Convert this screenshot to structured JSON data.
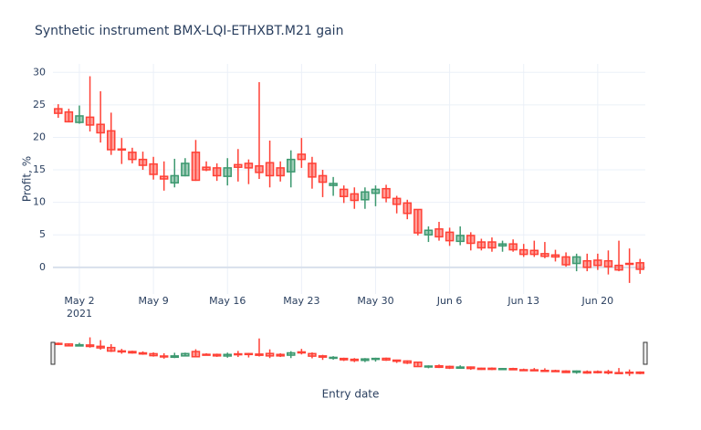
{
  "chart_data": {
    "type": "candlestick",
    "title": "Synthetic instrument BMX-LQI-ETHXBT.M21 gain",
    "x_label": "Entry date",
    "y_label": "Profit, %",
    "x": [
      "2021-04-30",
      "2021-05-01",
      "2021-05-02",
      "2021-05-03",
      "2021-05-04",
      "2021-05-05",
      "2021-05-06",
      "2021-05-07",
      "2021-05-08",
      "2021-05-09",
      "2021-05-10",
      "2021-05-11",
      "2021-05-12",
      "2021-05-13",
      "2021-05-14",
      "2021-05-15",
      "2021-05-16",
      "2021-05-17",
      "2021-05-18",
      "2021-05-19",
      "2021-05-20",
      "2021-05-21",
      "2021-05-22",
      "2021-05-23",
      "2021-05-24",
      "2021-05-25",
      "2021-05-26",
      "2021-05-27",
      "2021-05-28",
      "2021-05-29",
      "2021-05-30",
      "2021-05-31",
      "2021-06-01",
      "2021-06-02",
      "2021-06-03",
      "2021-06-04",
      "2021-06-05",
      "2021-06-06",
      "2021-06-07",
      "2021-06-08",
      "2021-06-09",
      "2021-06-10",
      "2021-06-11",
      "2021-06-12",
      "2021-06-13",
      "2021-06-14",
      "2021-06-15",
      "2021-06-16",
      "2021-06-17",
      "2021-06-18",
      "2021-06-19",
      "2021-06-20",
      "2021-06-21",
      "2021-06-22",
      "2021-06-23",
      "2021-06-24"
    ],
    "open": [
      24.4,
      23.9,
      22.3,
      23.1,
      22.0,
      21.0,
      18.2,
      17.7,
      16.6,
      15.9,
      14.0,
      13.0,
      14.1,
      17.7,
      15.4,
      15.3,
      14.0,
      15.8,
      16.0,
      15.6,
      16.1,
      15.3,
      14.7,
      17.4,
      16.0,
      14.1,
      12.6,
      12.0,
      11.3,
      10.4,
      11.4,
      12.1,
      10.6,
      9.9,
      8.9,
      5.0,
      5.9,
      5.4,
      4.0,
      4.9,
      3.9,
      3.9,
      3.3,
      3.6,
      2.7,
      2.6,
      2.1,
      1.9,
      1.6,
      0.6,
      1.0,
      1.1,
      1.0,
      0.3,
      0.6,
      0.7
    ],
    "high": [
      25.1,
      24.4,
      24.9,
      29.4,
      27.1,
      23.8,
      19.9,
      18.4,
      17.8,
      17.0,
      16.3,
      16.7,
      16.8,
      19.6,
      16.3,
      16.0,
      16.8,
      18.2,
      16.6,
      28.5,
      19.5,
      16.3,
      18.0,
      19.9,
      17.0,
      15.0,
      13.9,
      12.6,
      12.3,
      12.3,
      12.6,
      12.7,
      11.0,
      10.4,
      8.9,
      6.3,
      7.0,
      6.1,
      6.3,
      5.4,
      4.4,
      4.6,
      4.1,
      4.3,
      3.6,
      4.1,
      3.9,
      2.7,
      2.3,
      2.1,
      2.1,
      2.1,
      2.6,
      4.1,
      2.9,
      1.3
    ],
    "low": [
      23.0,
      22.3,
      22.1,
      20.9,
      19.2,
      17.3,
      15.9,
      16.0,
      15.0,
      13.5,
      11.8,
      12.3,
      14.0,
      13.3,
      14.8,
      13.3,
      12.6,
      13.2,
      12.8,
      13.6,
      12.3,
      13.2,
      12.3,
      15.3,
      12.1,
      10.8,
      11.0,
      9.9,
      9.0,
      9.0,
      9.4,
      10.0,
      8.3,
      7.4,
      4.9,
      3.9,
      4.1,
      3.3,
      3.4,
      2.6,
      2.6,
      2.4,
      2.4,
      2.4,
      1.6,
      1.6,
      1.4,
      0.9,
      0.1,
      -0.6,
      -0.6,
      -0.4,
      -1.1,
      -0.6,
      -2.4,
      -1.0
    ],
    "close": [
      23.7,
      22.4,
      23.3,
      21.9,
      20.7,
      18.1,
      18.1,
      16.6,
      15.7,
      14.3,
      13.6,
      14.1,
      16.0,
      13.4,
      15.0,
      14.1,
      15.3,
      15.4,
      15.3,
      14.6,
      14.1,
      14.1,
      16.6,
      16.6,
      13.9,
      13.1,
      12.9,
      10.9,
      10.3,
      11.6,
      12.0,
      10.7,
      9.7,
      8.3,
      5.3,
      5.7,
      4.7,
      4.1,
      4.9,
      3.7,
      3.0,
      3.0,
      3.6,
      2.7,
      2.0,
      2.0,
      1.7,
      1.6,
      0.4,
      1.6,
      0.0,
      0.3,
      0.1,
      -0.4,
      0.5,
      -0.3
    ],
    "increasing_color": "#3d9970",
    "decreasing_color": "#ff4136",
    "xlim": [
      "2021-04-29T12:00",
      "2021-06-24T12:00"
    ],
    "xticks": [
      {
        "value": "2021-05-02",
        "label": "May 2\n2021"
      },
      {
        "value": "2021-05-09",
        "label": "May 9"
      },
      {
        "value": "2021-05-16",
        "label": "May 16"
      },
      {
        "value": "2021-05-23",
        "label": "May 23"
      },
      {
        "value": "2021-05-30",
        "label": "May 30"
      },
      {
        "value": "2021-06-06",
        "label": "Jun 6"
      },
      {
        "value": "2021-06-13",
        "label": "Jun 13"
      },
      {
        "value": "2021-06-20",
        "label": "Jun 20"
      }
    ],
    "ylim": [
      -4.1,
      31.3
    ],
    "yticks": [
      0,
      5,
      10,
      15,
      20,
      25,
      30
    ],
    "grid": true,
    "rangeslider": true
  }
}
